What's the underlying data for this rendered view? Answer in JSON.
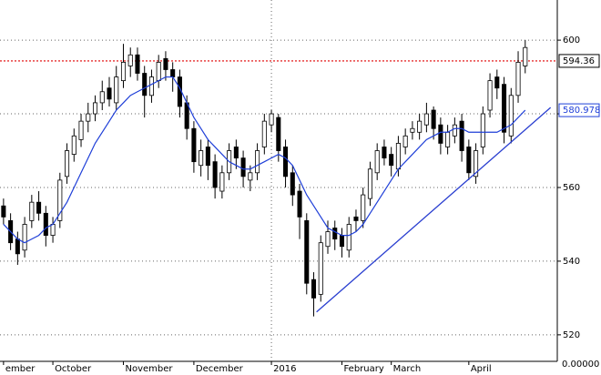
{
  "chart_data": {
    "type": "candlestick",
    "categories": [
      "ember",
      null,
      null,
      null,
      null,
      null,
      null,
      "October",
      null,
      null,
      null,
      null,
      null,
      null,
      null,
      null,
      null,
      "November",
      null,
      null,
      null,
      null,
      null,
      null,
      null,
      null,
      null,
      "December",
      null,
      null,
      null,
      null,
      null,
      null,
      null,
      null,
      null,
      null,
      "2016",
      null,
      null,
      null,
      null,
      null,
      null,
      null,
      null,
      null,
      "February",
      null,
      null,
      null,
      null,
      null,
      null,
      "March",
      null,
      null,
      null,
      null,
      null,
      null,
      null,
      null,
      null,
      null,
      "April",
      null,
      null,
      null,
      null,
      null,
      null,
      null,
      null
    ],
    "open": [
      555,
      551,
      546,
      543,
      551,
      556,
      553,
      547,
      551,
      563,
      569,
      573,
      578,
      580,
      583,
      587,
      583,
      589,
      593,
      596,
      591,
      585,
      589,
      595,
      592,
      590,
      583,
      576,
      566,
      571,
      567,
      559,
      564,
      571,
      568,
      562,
      564,
      571,
      577,
      579,
      571,
      564,
      559,
      551,
      535,
      531,
      544,
      549,
      547,
      543,
      552,
      551,
      557,
      564,
      571,
      569,
      565,
      571,
      575,
      575,
      577,
      581,
      577,
      571,
      574,
      578,
      571,
      563,
      571,
      581,
      590,
      588,
      574,
      585,
      593
    ],
    "high": [
      557,
      553,
      548,
      552,
      558,
      559,
      555,
      552,
      564,
      572,
      576,
      580,
      583,
      585,
      589,
      590,
      593,
      599,
      598,
      598,
      593,
      592,
      596,
      597,
      594,
      592,
      585,
      578,
      573,
      573,
      569,
      566,
      572,
      573,
      570,
      566,
      572,
      580,
      581,
      580,
      573,
      566,
      561,
      553,
      537,
      547,
      551,
      551,
      549,
      552,
      554,
      560,
      567,
      572,
      573,
      571,
      574,
      576,
      578,
      580,
      583,
      582,
      579,
      577,
      579,
      580,
      573,
      572,
      582,
      591,
      592,
      590,
      587,
      597,
      600
    ],
    "low": [
      550,
      543,
      539,
      541,
      549,
      551,
      544,
      545,
      549,
      561,
      567,
      571,
      575,
      578,
      581,
      582,
      581,
      587,
      590,
      589,
      579,
      583,
      587,
      589,
      586,
      579,
      573,
      564,
      563,
      562,
      557,
      557,
      562,
      565,
      560,
      559,
      562,
      569,
      575,
      567,
      560,
      555,
      546,
      531,
      525,
      529,
      542,
      543,
      541,
      541,
      548,
      549,
      555,
      562,
      566,
      563,
      563,
      569,
      573,
      573,
      575,
      573,
      569,
      569,
      572,
      567,
      562,
      561,
      569,
      579,
      584,
      572,
      572,
      583,
      591
    ],
    "close": [
      552,
      545,
      542,
      550,
      556,
      553,
      547,
      550,
      562,
      570,
      574,
      578,
      580,
      583,
      586,
      584,
      590,
      594,
      596,
      591,
      585,
      590,
      594,
      592,
      590,
      582,
      576,
      567,
      570,
      566,
      560,
      564,
      570,
      568,
      563,
      564,
      570,
      578,
      580,
      570,
      563,
      558,
      552,
      534,
      530,
      545,
      548,
      546,
      544,
      550,
      551,
      558,
      565,
      570,
      568,
      566,
      572,
      574,
      576,
      578,
      580,
      576,
      572,
      575,
      577,
      570,
      564,
      570,
      580,
      589,
      587,
      575,
      585,
      594,
      598
    ],
    "candle_color": "#000000",
    "ma": {
      "color": "#1f3fd8",
      "values": [
        550,
        548,
        546,
        545,
        546,
        547,
        549,
        550,
        553,
        556,
        560,
        564,
        568,
        572,
        575,
        578,
        581,
        583,
        585,
        586,
        587,
        588,
        589,
        590,
        590,
        587,
        583,
        579,
        576,
        573,
        571,
        569,
        567,
        566,
        565,
        565,
        566,
        567,
        568,
        569,
        568,
        566,
        562,
        558,
        555,
        552,
        549,
        548,
        547,
        547,
        548,
        550,
        553,
        556,
        559,
        562,
        565,
        567,
        569,
        571,
        573,
        574,
        575,
        575,
        576,
        576,
        575,
        575,
        575,
        575,
        575,
        576,
        577,
        579,
        580.978
      ]
    },
    "trendline": {
      "color": "#2a3fd0",
      "x": [
        44.4,
        77.6
      ],
      "values": [
        526.2,
        581.7
      ]
    },
    "resistance": 594.36,
    "resistance_color": "#e00000",
    "y_axis_footer": "0.00000",
    "xlim": [
      -0.5,
      78.55
    ],
    "ylim": [
      512.8,
      610.9
    ],
    "yticks": [
      520,
      540,
      560,
      580,
      600
    ],
    "grid": true
  }
}
